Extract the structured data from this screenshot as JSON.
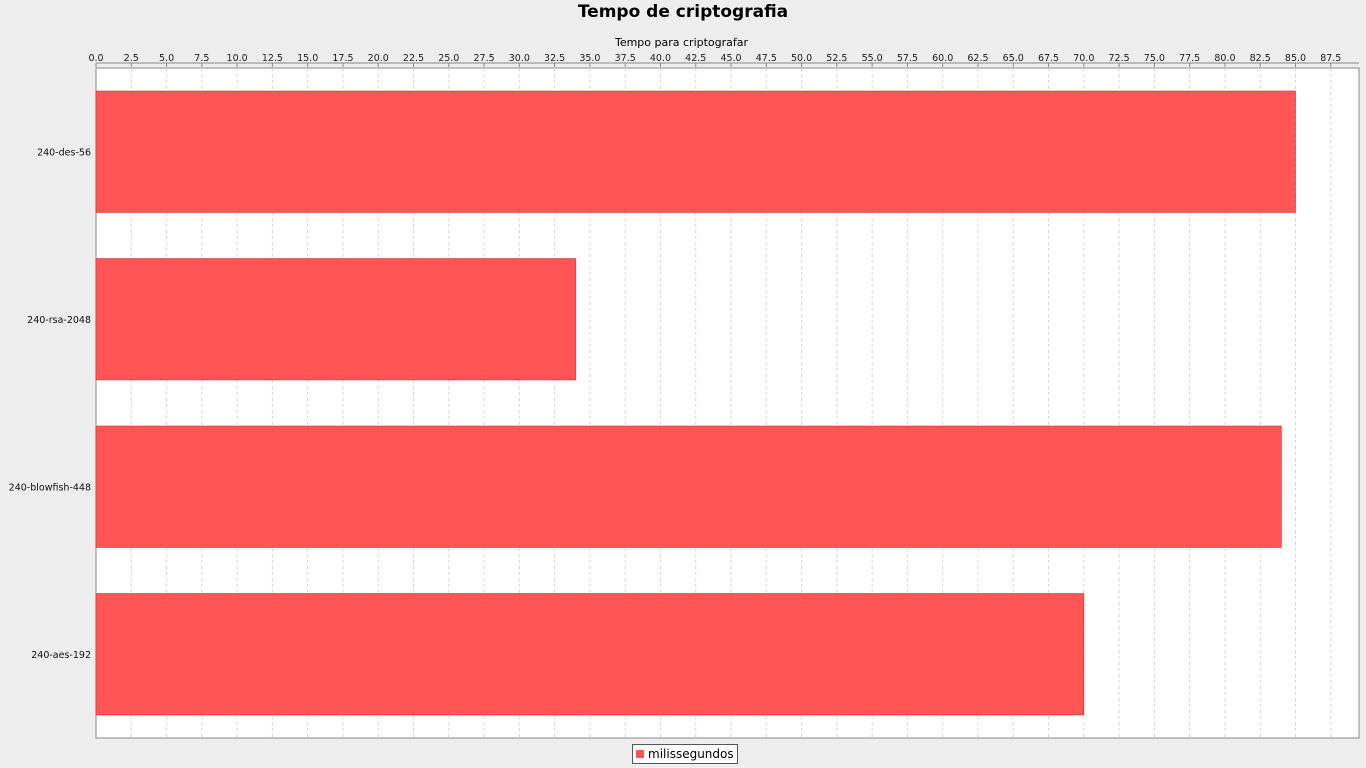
{
  "chart_data": {
    "type": "bar",
    "orientation": "horizontal",
    "title": "Tempo de criptografia",
    "xlabel": "Tempo para criptografar",
    "ylabel": "",
    "categories": [
      "240-des-56",
      "240-rsa-2048",
      "240-blowfish-448",
      "240-aes-192"
    ],
    "series": [
      {
        "name": "milissegundos",
        "values": [
          85,
          34,
          84,
          70
        ],
        "color": "#ff5555"
      }
    ],
    "xlim": [
      0,
      89.5
    ],
    "x_tick_step": 2.5,
    "x_tick_max": 87.5,
    "x_axis_position": "top",
    "grid": true,
    "legend_position": "bottom-center"
  }
}
